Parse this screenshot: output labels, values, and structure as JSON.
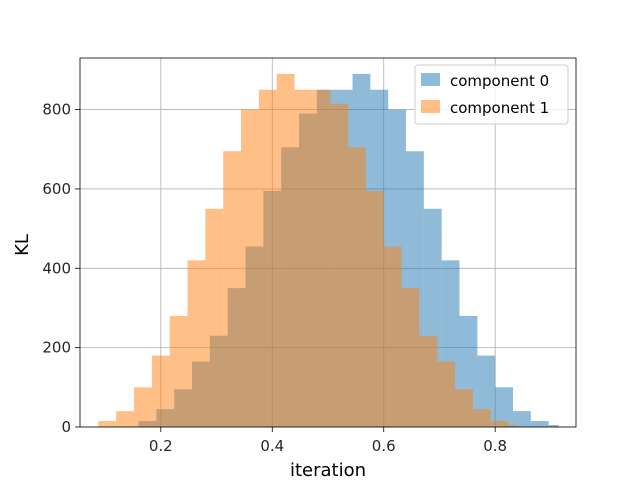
{
  "chart_data": {
    "type": "histogram",
    "title": "",
    "xlabel": "iteration",
    "ylabel": "KL",
    "xlim": [
      0.055,
      0.945
    ],
    "ylim": [
      0,
      930
    ],
    "grid": true,
    "legend_position": "top-right",
    "xticks": [
      0.2,
      0.4,
      0.6,
      0.8
    ],
    "xtick_labels": [
      "0.2",
      "0.4",
      "0.6",
      "0.8"
    ],
    "yticks": [
      0,
      200,
      400,
      600,
      800
    ],
    "ytick_labels": [
      "0",
      "200",
      "400",
      "600",
      "800"
    ],
    "series": [
      {
        "name": "component 0",
        "color": "#1f77b4",
        "alpha": 0.5,
        "bin_edges": [
          0.16,
          0.192,
          0.224,
          0.256,
          0.288,
          0.32,
          0.352,
          0.384,
          0.416,
          0.448,
          0.48,
          0.512,
          0.544,
          0.576,
          0.608,
          0.64,
          0.672,
          0.704,
          0.736,
          0.768,
          0.8,
          0.832,
          0.864,
          0.896,
          0.914
        ],
        "counts": [
          15,
          45,
          95,
          165,
          230,
          350,
          455,
          595,
          705,
          790,
          850,
          850,
          890,
          850,
          800,
          695,
          550,
          420,
          280,
          180,
          100,
          40,
          15,
          5
        ]
      },
      {
        "name": "component 1",
        "color": "#ff7f0e",
        "alpha": 0.5,
        "bin_edges": [
          0.088,
          0.12,
          0.152,
          0.184,
          0.216,
          0.248,
          0.28,
          0.312,
          0.344,
          0.376,
          0.408,
          0.44,
          0.472,
          0.504,
          0.536,
          0.568,
          0.6,
          0.632,
          0.664,
          0.696,
          0.728,
          0.76,
          0.792,
          0.824,
          0.84
        ],
        "counts": [
          15,
          40,
          100,
          180,
          280,
          420,
          550,
          695,
          800,
          850,
          890,
          850,
          850,
          815,
          705,
          595,
          455,
          350,
          230,
          165,
          95,
          45,
          15,
          5
        ]
      }
    ]
  }
}
